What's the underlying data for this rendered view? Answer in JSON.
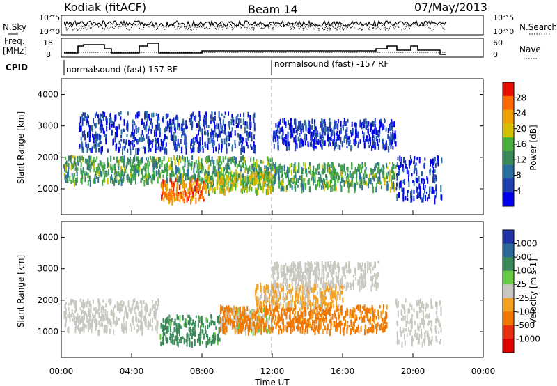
{
  "header": {
    "station": "Kodiak (fitACF)",
    "beam": "Beam 14",
    "date": "07/May/2013"
  },
  "panels": {
    "nsky": {
      "left_label": "N.Sky",
      "right_label": "N.Search",
      "left_ticks": [
        "10^5",
        "10^0"
      ],
      "right_ticks": [
        "10^5",
        "10^0"
      ]
    },
    "freq": {
      "left_label_1": "Freq.",
      "left_label_2": "[MHz]",
      "right_label": "Nave",
      "left_ticks": [
        "18",
        "8"
      ],
      "right_ticks": [
        "60",
        "0"
      ]
    },
    "cpid": {
      "label": "CPID",
      "segments": [
        {
          "text": "normalsound (fast) 157 RF",
          "start_hour": 0
        },
        {
          "text": "normalsound (fast) -157 RF",
          "start_hour": 12
        }
      ]
    }
  },
  "x_axis": {
    "label": "Time UT",
    "ticks": [
      "00:00",
      "04:00",
      "08:00",
      "12:00",
      "16:00",
      "20:00",
      "00:00"
    ],
    "range_hours": [
      0,
      24
    ]
  },
  "y_axis": {
    "label": "Slant Range [km]",
    "ticks": [
      1000,
      2000,
      3000,
      4000
    ],
    "range_km": [
      180,
      4500
    ]
  },
  "chart_data": [
    {
      "type": "heatmap",
      "name": "power",
      "xlabel": "Time UT",
      "ylabel": "Slant Range [km]",
      "xlim": [
        0,
        24
      ],
      "ylim": [
        180,
        4500
      ],
      "colorbar": {
        "label": "Power [dB]",
        "ticks": [
          "4",
          "8",
          "12",
          "16",
          "20",
          "24",
          "28"
        ],
        "colors": [
          "#0000ee",
          "#2040b0",
          "#2a6fa0",
          "#3a8a5a",
          "#48b040",
          "#d4c000",
          "#f0a000",
          "#ff6a00",
          "#e81000"
        ]
      },
      "echo_regions": [
        {
          "t": [
            0.1,
            12.0
          ],
          "r": [
            1200,
            2000
          ],
          "level": 14
        },
        {
          "t": [
            5.6,
            8.2
          ],
          "r": [
            600,
            1300
          ],
          "level": 26
        },
        {
          "t": [
            8.2,
            12.0
          ],
          "r": [
            900,
            1500
          ],
          "level": 18
        },
        {
          "t": [
            12.0,
            19.0
          ],
          "r": [
            1000,
            1800
          ],
          "level": 14
        },
        {
          "t": [
            12.0,
            19.0
          ],
          "r": [
            2300,
            3200
          ],
          "level": 5
        },
        {
          "t": [
            1.0,
            11.0
          ],
          "r": [
            2200,
            3400
          ],
          "level": 5
        },
        {
          "t": [
            19.0,
            21.6
          ],
          "r": [
            600,
            2000
          ],
          "level": 4
        }
      ]
    },
    {
      "type": "heatmap",
      "name": "velocity",
      "xlabel": "Time UT",
      "ylabel": "Slant Range [km]",
      "xlim": [
        0,
        24
      ],
      "ylim": [
        180,
        4500
      ],
      "colorbar": {
        "label": "Velocity [m s-1]",
        "ticks": [
          "1000",
          "500",
          "100",
          "25",
          "-25",
          "-100",
          "-500",
          "-1000"
        ],
        "colors": [
          "#2034a8",
          "#2c6a9a",
          "#3a8a5a",
          "#66cc44",
          "#c8c8c0",
          "#f4a020",
          "#f07800",
          "#e83010",
          "#e00000"
        ]
      },
      "echo_regions": [
        {
          "t": [
            0.1,
            5.5
          ],
          "r": [
            1000,
            2000
          ],
          "level": 0
        },
        {
          "t": [
            5.6,
            9.0
          ],
          "r": [
            600,
            1500
          ],
          "level": 150
        },
        {
          "t": [
            9.0,
            12.0
          ],
          "r": [
            1000,
            1700
          ],
          "level": 20
        },
        {
          "t": [
            9.0,
            18.5
          ],
          "r": [
            1000,
            1800
          ],
          "level": -150
        },
        {
          "t": [
            11.0,
            16.0
          ],
          "r": [
            1800,
            2500
          ],
          "level": -30
        },
        {
          "t": [
            12.0,
            18.0
          ],
          "r": [
            2400,
            3200
          ],
          "level": 0
        },
        {
          "t": [
            19.0,
            21.6
          ],
          "r": [
            600,
            2000
          ],
          "level": 0
        }
      ]
    }
  ]
}
